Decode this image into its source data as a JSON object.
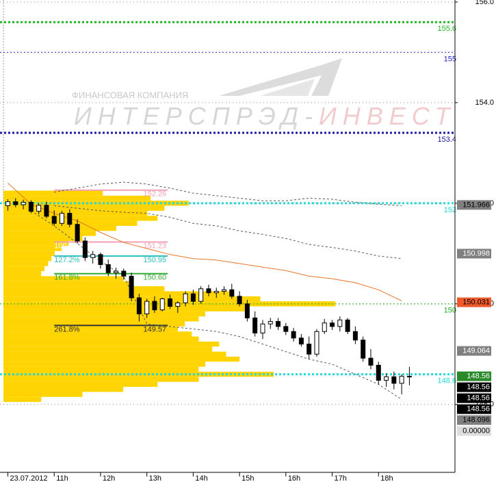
{
  "watermark": {
    "line1": "ФИНАНСОВАЯ КОМПАНИЯ",
    "line2a": "ИНТЕРСПРЭД-",
    "line2b": "ИНВЕСТ"
  },
  "chart_data": {
    "type": "candlestick",
    "ylim": [
      146.65,
      156.04
    ],
    "yticks": [
      {
        "value": 156,
        "label": "156.0"
      },
      {
        "value": 154,
        "label": "154.0"
      },
      {
        "value": 152,
        "label": "152.0"
      },
      {
        "value": 150,
        "label": "150.0"
      },
      {
        "value": 148,
        "label": "148.0"
      }
    ],
    "grid": true,
    "xlim": [
      9.83,
      19.65
    ],
    "xticks": [
      {
        "value": 10,
        "label": "23.07.2012"
      },
      {
        "value": 11,
        "label": "11h"
      },
      {
        "value": 12,
        "label": "12h"
      },
      {
        "value": 13,
        "label": "13h"
      },
      {
        "value": 14,
        "label": "14h"
      },
      {
        "value": 15,
        "label": "15h"
      },
      {
        "value": 16,
        "label": "16h"
      },
      {
        "value": 17,
        "label": "17h"
      },
      {
        "value": 18,
        "label": "18h"
      }
    ],
    "open": [
      151.95,
      152.03,
      151.97,
      152.02,
      151.84,
      151.96,
      151.74,
      151.6,
      151.8,
      151.58,
      151.25,
      150.92,
      150.98,
      150.78,
      150.62,
      150.65,
      150.55,
      150.12,
      149.8,
      150.05,
      149.88,
      150.1,
      149.95,
      150.02,
      150.2,
      150.05,
      150.3,
      150.22,
      150.25,
      150.28,
      150.15,
      150.0,
      149.72,
      149.42,
      149.6,
      149.65,
      149.55,
      149.45,
      149.32,
      149.2,
      149.0,
      149.45,
      149.62,
      149.55,
      149.68,
      149.45,
      149.28,
      148.92,
      148.78,
      148.48,
      148.55,
      148.42,
      148.56
    ],
    "high": [
      152.08,
      152.1,
      152.07,
      152.06,
      152.0,
      152.03,
      151.86,
      151.85,
      151.88,
      151.68,
      151.32,
      151.05,
      151.02,
      150.88,
      150.72,
      150.7,
      150.62,
      150.2,
      150.1,
      150.15,
      150.12,
      150.18,
      150.05,
      150.25,
      150.28,
      150.35,
      150.38,
      150.32,
      150.35,
      150.4,
      150.25,
      150.08,
      149.85,
      149.68,
      149.72,
      149.72,
      149.62,
      149.52,
      149.4,
      149.35,
      149.5,
      149.7,
      149.68,
      149.75,
      149.72,
      149.55,
      149.35,
      149.1,
      148.85,
      148.62,
      148.65,
      148.6,
      148.75
    ],
    "low": [
      151.85,
      151.92,
      151.88,
      151.8,
      151.78,
      151.7,
      151.55,
      151.55,
      151.52,
      151.2,
      150.85,
      150.8,
      150.7,
      150.55,
      150.5,
      150.48,
      150.05,
      149.65,
      149.72,
      149.82,
      149.85,
      149.9,
      149.82,
      149.95,
      149.98,
      150.0,
      150.15,
      150.12,
      150.18,
      150.1,
      149.95,
      149.65,
      149.35,
      149.3,
      149.5,
      149.48,
      149.38,
      149.25,
      149.15,
      148.9,
      148.95,
      149.4,
      149.48,
      149.45,
      149.4,
      149.2,
      148.85,
      148.7,
      148.4,
      148.35,
      148.3,
      148.2,
      148.38
    ],
    "close": [
      152.03,
      151.97,
      152.02,
      151.84,
      151.96,
      151.74,
      151.6,
      151.8,
      151.58,
      151.25,
      150.92,
      150.98,
      150.78,
      150.62,
      150.65,
      150.55,
      150.12,
      149.8,
      150.05,
      149.88,
      150.1,
      149.95,
      150.02,
      150.2,
      150.05,
      150.3,
      150.22,
      150.25,
      150.28,
      150.15,
      150.0,
      149.72,
      149.42,
      149.6,
      149.65,
      149.55,
      149.45,
      149.32,
      149.2,
      149.0,
      149.45,
      149.62,
      149.55,
      149.68,
      149.45,
      149.28,
      148.92,
      148.78,
      148.48,
      148.55,
      148.42,
      148.56,
      148.56
    ],
    "lines": {
      "x": [
        10,
        10.5,
        11,
        11.5,
        12,
        12.5,
        13,
        13.5,
        14,
        14.5,
        15,
        15.5,
        16,
        16.5,
        17,
        17.5,
        18,
        18.5
      ],
      "series": [
        {
          "color": "#e8742a",
          "style": "solid",
          "values": [
            152.4,
            151.98,
            151.8,
            151.65,
            151.42,
            151.22,
            151.1,
            150.98,
            150.9,
            150.87,
            150.8,
            150.73,
            150.66,
            150.55,
            150.5,
            150.42,
            150.28,
            150.06
          ]
        },
        {
          "color": "#555555",
          "style": "dashed",
          "values": [
            null,
            null,
            152.22,
            152.3,
            152.38,
            152.42,
            152.38,
            152.3,
            152.2,
            152.15,
            152.1,
            152.05,
            152.05,
            152.1,
            152.08,
            152.02,
            151.98,
            151.95
          ]
        },
        {
          "color": "#555555",
          "style": "dashed",
          "values": [
            null,
            null,
            151.95,
            151.9,
            151.85,
            151.82,
            151.8,
            151.72,
            151.6,
            151.55,
            151.45,
            151.38,
            151.3,
            151.18,
            151.12,
            151.05,
            150.95,
            150.9
          ]
        },
        {
          "color": "#555555",
          "style": "dashed",
          "values": [
            null,
            151.85,
            151.55,
            151.2,
            150.85,
            150.55,
            149.6,
            149.55,
            149.5,
            149.45,
            149.35,
            149.2,
            149.05,
            148.9,
            148.8,
            148.6,
            148.4,
            148.1
          ]
        }
      ]
    },
    "profile": {
      "color": "#ffd400",
      "prices": [
        152.2,
        152.1,
        152.0,
        151.9,
        151.8,
        151.7,
        151.6,
        151.5,
        151.4,
        151.3,
        151.2,
        151.1,
        151.0,
        150.9,
        150.8,
        150.7,
        150.6,
        150.5,
        150.4,
        150.3,
        150.2,
        150.1,
        150.0,
        149.9,
        149.8,
        149.7,
        149.6,
        149.5,
        149.4,
        149.3,
        149.2,
        149.1,
        149.0,
        148.9,
        148.8,
        148.7,
        148.6,
        148.5,
        148.4,
        148.3,
        148.2,
        148.1
      ],
      "values": [
        12.05,
        13.08,
        13.9,
        13.38,
        13.01,
        13.23,
        12.79,
        12.34,
        11.9,
        11.61,
        11.31,
        11.16,
        11.01,
        10.94,
        10.87,
        10.79,
        10.72,
        12.49,
        12.64,
        13.38,
        14.86,
        15.45,
        17.07,
        15.15,
        14.26,
        14.12,
        13.82,
        13.67,
        13.97,
        14.12,
        14.56,
        14.41,
        14.71,
        15.0,
        14.26,
        14.12,
        15.74,
        14.12,
        13.23,
        12.49,
        11.61,
        10.72
      ]
    },
    "levels": [
      {
        "value": 155.6,
        "color": "#22bb22",
        "style": "thick"
      },
      {
        "value": 155,
        "color": "#2222cc",
        "style": "thin"
      },
      {
        "value": 153.4,
        "color": "#1a1aa0",
        "style": "thick"
      },
      {
        "value": 152,
        "color": "#22d8d8",
        "style": "thick"
      },
      {
        "value": 150,
        "color": "#22aa22",
        "style": "thin"
      },
      {
        "value": 148.6,
        "color": "#22d8d8",
        "style": "thick"
      }
    ],
    "fib": [
      {
        "price": 152.26,
        "color": "#f2a0b4"
      },
      {
        "price": 151.23,
        "color": "#f2a0b4",
        "ratio": "100.0%",
        "ratio_color": "#ffffff"
      },
      {
        "price": 150.95,
        "color": "#30c0c0",
        "ratio": "127.2%",
        "ratio_color": "#30c0c0"
      },
      {
        "price": 150.6,
        "label": "150.60",
        "color": "#33aa33",
        "ratio": "161.8%",
        "ratio_color": "#33aa33"
      },
      {
        "price": 149.57,
        "color": "#333333",
        "ratio": "261.8%",
        "ratio_color": "#333333"
      }
    ],
    "price_boxes": [
      {
        "price": 151.966,
        "bg": "#808080",
        "fg": "#000000"
      },
      {
        "price": 150.998,
        "bg": "#808080",
        "fg": "#ffffff"
      },
      {
        "price": 150.031,
        "bg": "#f05a28",
        "fg": "#000000"
      },
      {
        "price": 149.064,
        "bg": "#808080",
        "fg": "#ffffff"
      },
      {
        "price": 148.56,
        "bg": "#2a8a2a",
        "fg": "#ffffff"
      },
      {
        "price": 148.56,
        "bg": "#000000",
        "fg": "#ffffff"
      },
      {
        "price": 148.56,
        "bg": "#000000",
        "fg": "#ffffff"
      },
      {
        "price": 148.56,
        "bg": "#000000",
        "fg": "#ffffff"
      },
      {
        "price": 148.096,
        "bg": "#808080",
        "fg": "#000000"
      },
      {
        "price": 0,
        "label": "0.00000",
        "bg": "#dddddd",
        "fg": "#000000"
      }
    ]
  }
}
